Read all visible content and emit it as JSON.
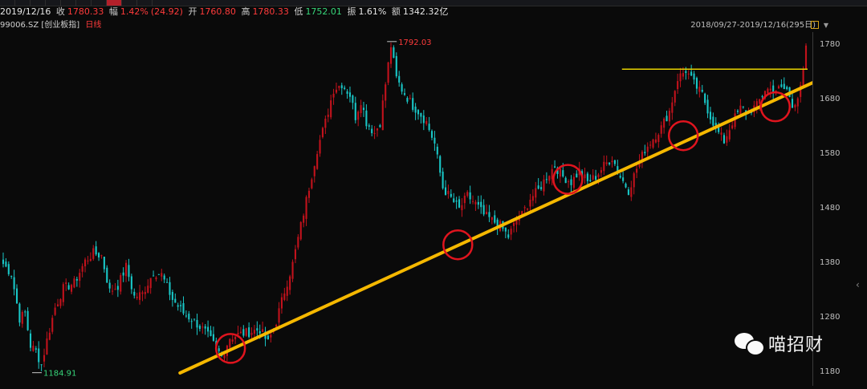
{
  "quote": {
    "date": "2019/12/16",
    "close_label": "收",
    "close": "1780.33",
    "change_label": "幅",
    "change_pct": "1.42%",
    "change_abs": "(24.92)",
    "open_label": "开",
    "open": "1760.80",
    "high_label": "高",
    "high": "1780.33",
    "low_label": "低",
    "low": "1752.01",
    "amp_label": "振",
    "amp": "1.61%",
    "amount_label": "额",
    "amount": "1342.32亿"
  },
  "sub": {
    "code": "99006.SZ",
    "name": "[创业板指]",
    "period": "日线"
  },
  "range_text": "2018/09/27-2019/12/16(295日)",
  "watermark": "喵招财",
  "annotations": {
    "high_label": "1792.03",
    "low_label": "1184.91"
  },
  "colors": {
    "up": "#c2121c",
    "down": "#19c6c6",
    "trend": "#f5b800",
    "resistance": "#e8d200",
    "circle": "#e0141e"
  },
  "chart_data": {
    "type": "candlestick",
    "title": "创业板指 日线",
    "x_range": [
      "2018/09/27",
      "2019/12/16"
    ],
    "ylim": [
      1160,
      1800
    ],
    "yticks": [
      1180,
      1280,
      1380,
      1480,
      1580,
      1680,
      1780
    ],
    "grid": false,
    "annotations": [
      {
        "type": "max",
        "label": "1792.03"
      },
      {
        "type": "min",
        "label": "1184.91"
      }
    ],
    "trendline": {
      "from": {
        "date": "2019/01/03",
        "price": 1180
      },
      "to": {
        "date": "2019/12/16",
        "price": 1725
      }
    },
    "resistance": {
      "price": 1737,
      "from": "2019/09/05",
      "to": "2019/12/16"
    },
    "touch_points": [
      {
        "date": "2019/01/31",
        "price": 1225
      },
      {
        "date": "2019/06/06",
        "price": 1415
      },
      {
        "date": "2019/08/06",
        "price": 1535
      },
      {
        "date": "2019/10/09",
        "price": 1615
      },
      {
        "date": "2019/11/29",
        "price": 1668
      }
    ],
    "waypoints": [
      {
        "i": 0,
        "c": 1380
      },
      {
        "i": 3,
        "c": 1362
      },
      {
        "i": 6,
        "c": 1280
      },
      {
        "i": 8,
        "c": 1290
      },
      {
        "i": 10,
        "c": 1230
      },
      {
        "i": 12,
        "c": 1220
      },
      {
        "i": 14,
        "c": 1195
      },
      {
        "i": 16,
        "c": 1240
      },
      {
        "i": 19,
        "c": 1300
      },
      {
        "i": 22,
        "c": 1335
      },
      {
        "i": 26,
        "c": 1345
      },
      {
        "i": 30,
        "c": 1385
      },
      {
        "i": 33,
        "c": 1400
      },
      {
        "i": 36,
        "c": 1395
      },
      {
        "i": 39,
        "c": 1330
      },
      {
        "i": 42,
        "c": 1340
      },
      {
        "i": 45,
        "c": 1375
      },
      {
        "i": 48,
        "c": 1320
      },
      {
        "i": 51,
        "c": 1325
      },
      {
        "i": 55,
        "c": 1365
      },
      {
        "i": 58,
        "c": 1360
      },
      {
        "i": 62,
        "c": 1315
      },
      {
        "i": 66,
        "c": 1290
      },
      {
        "i": 70,
        "c": 1275
      },
      {
        "i": 74,
        "c": 1255
      },
      {
        "i": 78,
        "c": 1225
      },
      {
        "i": 80,
        "c": 1210
      },
      {
        "i": 83,
        "c": 1245
      },
      {
        "i": 86,
        "c": 1250
      },
      {
        "i": 90,
        "c": 1255
      },
      {
        "i": 94,
        "c": 1260
      },
      {
        "i": 97,
        "c": 1235
      },
      {
        "i": 100,
        "c": 1275
      },
      {
        "i": 103,
        "c": 1330
      },
      {
        "i": 106,
        "c": 1380
      },
      {
        "i": 109,
        "c": 1450
      },
      {
        "i": 112,
        "c": 1520
      },
      {
        "i": 115,
        "c": 1590
      },
      {
        "i": 118,
        "c": 1640
      },
      {
        "i": 121,
        "c": 1700
      },
      {
        "i": 124,
        "c": 1710
      },
      {
        "i": 127,
        "c": 1690
      },
      {
        "i": 129,
        "c": 1650
      },
      {
        "i": 131,
        "c": 1680
      },
      {
        "i": 133,
        "c": 1640
      },
      {
        "i": 136,
        "c": 1620
      },
      {
        "i": 138,
        "c": 1640
      },
      {
        "i": 140,
        "c": 1710
      },
      {
        "i": 142,
        "c": 1780
      },
      {
        "i": 144,
        "c": 1720
      },
      {
        "i": 146,
        "c": 1700
      },
      {
        "i": 148,
        "c": 1685
      },
      {
        "i": 150,
        "c": 1670
      },
      {
        "i": 152,
        "c": 1660
      },
      {
        "i": 155,
        "c": 1640
      },
      {
        "i": 158,
        "c": 1600
      },
      {
        "i": 161,
        "c": 1520
      },
      {
        "i": 164,
        "c": 1500
      },
      {
        "i": 167,
        "c": 1480
      },
      {
        "i": 170,
        "c": 1505
      },
      {
        "i": 173,
        "c": 1490
      },
      {
        "i": 176,
        "c": 1470
      },
      {
        "i": 179,
        "c": 1460
      },
      {
        "i": 182,
        "c": 1450
      },
      {
        "i": 185,
        "c": 1430
      },
      {
        "i": 188,
        "c": 1460
      },
      {
        "i": 190,
        "c": 1470
      },
      {
        "i": 193,
        "c": 1500
      },
      {
        "i": 196,
        "c": 1515
      },
      {
        "i": 199,
        "c": 1540
      },
      {
        "i": 202,
        "c": 1560
      },
      {
        "i": 205,
        "c": 1540
      },
      {
        "i": 208,
        "c": 1530
      },
      {
        "i": 211,
        "c": 1550
      },
      {
        "i": 214,
        "c": 1530
      },
      {
        "i": 217,
        "c": 1540
      },
      {
        "i": 220,
        "c": 1560
      },
      {
        "i": 223,
        "c": 1575
      },
      {
        "i": 226,
        "c": 1540
      },
      {
        "i": 229,
        "c": 1515
      },
      {
        "i": 232,
        "c": 1555
      },
      {
        "i": 235,
        "c": 1590
      },
      {
        "i": 238,
        "c": 1610
      },
      {
        "i": 241,
        "c": 1630
      },
      {
        "i": 244,
        "c": 1660
      },
      {
        "i": 247,
        "c": 1720
      },
      {
        "i": 250,
        "c": 1735
      },
      {
        "i": 253,
        "c": 1710
      },
      {
        "i": 256,
        "c": 1690
      },
      {
        "i": 259,
        "c": 1650
      },
      {
        "i": 262,
        "c": 1620
      },
      {
        "i": 264,
        "c": 1605
      },
      {
        "i": 267,
        "c": 1640
      },
      {
        "i": 270,
        "c": 1665
      },
      {
        "i": 273,
        "c": 1660
      },
      {
        "i": 276,
        "c": 1670
      },
      {
        "i": 279,
        "c": 1700
      },
      {
        "i": 282,
        "c": 1700
      },
      {
        "i": 285,
        "c": 1700
      },
      {
        "i": 287,
        "c": 1700
      },
      {
        "i": 289,
        "c": 1668
      },
      {
        "i": 291,
        "c": 1690
      },
      {
        "i": 293,
        "c": 1730
      },
      {
        "i": 294,
        "c": 1780
      }
    ]
  }
}
